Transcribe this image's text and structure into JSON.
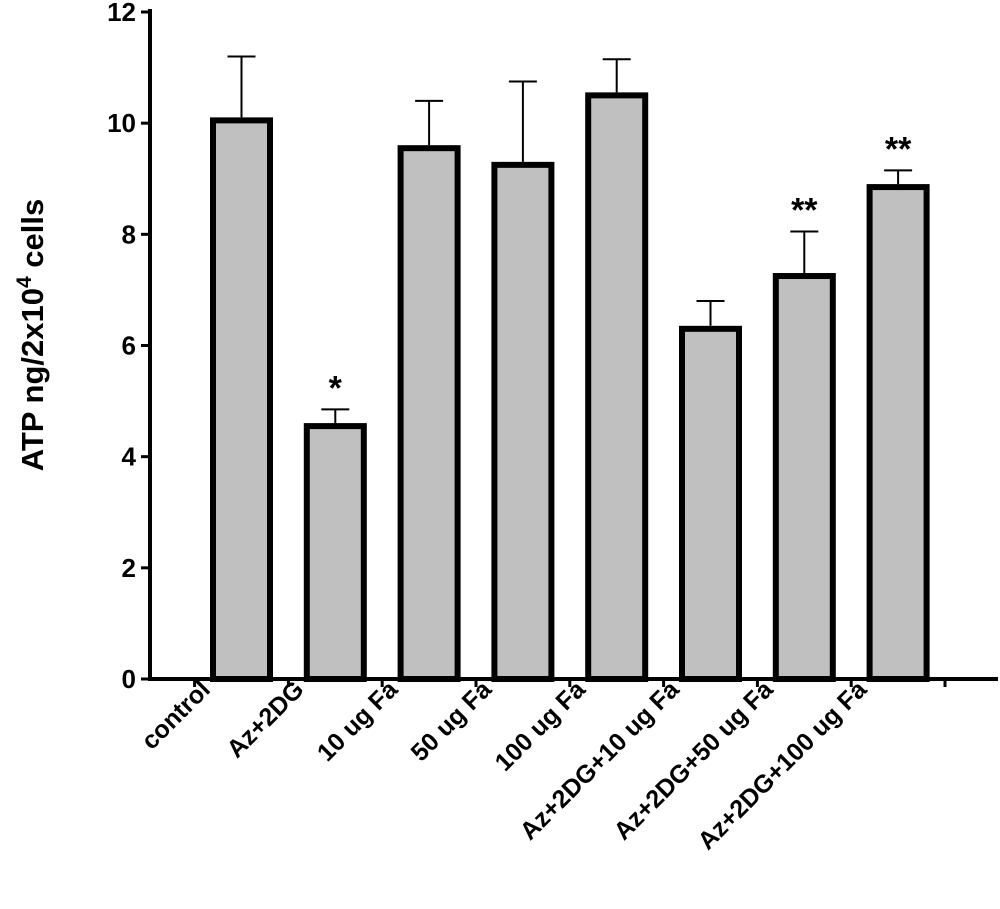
{
  "chart_data": {
    "type": "bar",
    "title": "",
    "xlabel": "",
    "ylabel": "ATP ng/2x10",
    "ylabel_superscript": "4",
    "ylabel_suffix": " cells",
    "ylim": [
      0,
      12
    ],
    "yticks": [
      "0",
      "2",
      "4",
      "6",
      "8",
      "10",
      "12"
    ],
    "categories": [
      "control",
      "Az+2DG",
      "10 ug Fa",
      "50 ug Fa",
      "100 ug Fa",
      "Az+2DG+10 ug Fa",
      "Az+2DG+50 ug Fa",
      "Az+2DG+100 ug Fa"
    ],
    "values": [
      10.05,
      4.55,
      9.55,
      9.25,
      10.5,
      6.3,
      7.25,
      8.85
    ],
    "error_upper": [
      1.15,
      0.3,
      0.85,
      1.5,
      0.65,
      0.5,
      0.8,
      0.3
    ],
    "annotations": [
      "",
      "*",
      "",
      "",
      "",
      "",
      "**",
      "**"
    ],
    "bar_fill": "#c0c0c0",
    "bar_stroke": "#000000",
    "grid": false,
    "legend": "none"
  }
}
